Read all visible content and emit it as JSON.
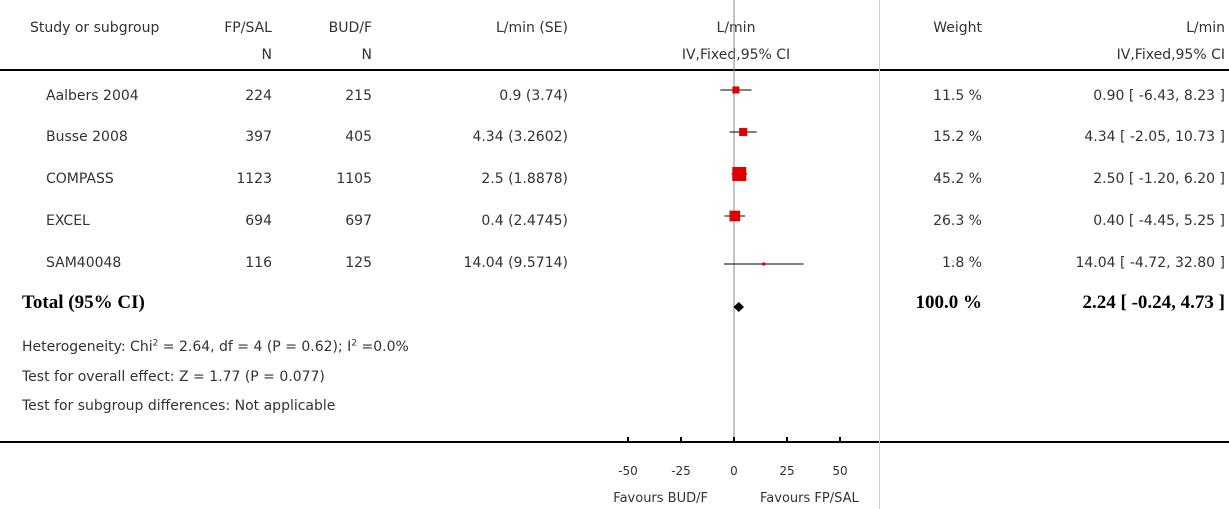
{
  "headers": {
    "study": "Study or subgroup",
    "group1": "FP/SAL",
    "group2": "BUD/F",
    "n1": "N",
    "n2": "N",
    "mean_se": "L/min (SE)",
    "plot_title": "L/min",
    "plot_method": "IV,Fixed,95% CI",
    "weight": "Weight",
    "ci_title": "L/min",
    "ci_method": "IV,Fixed,95% CI"
  },
  "studies": [
    {
      "name": "Aalbers 2004",
      "n1": "224",
      "n2": "215",
      "mean_se": "0.9 (3.74)",
      "weight": "11.5 %",
      "ci": "0.90 [ -6.43, 8.23 ]"
    },
    {
      "name": "Busse 2008",
      "n1": "397",
      "n2": "405",
      "mean_se": "4.34 (3.2602)",
      "weight": "15.2 %",
      "ci": "4.34 [ -2.05, 10.73 ]"
    },
    {
      "name": "COMPASS",
      "n1": "1123",
      "n2": "1105",
      "mean_se": "2.5 (1.8878)",
      "weight": "45.2 %",
      "ci": "2.50 [ -1.20, 6.20 ]"
    },
    {
      "name": "EXCEL",
      "n1": "694",
      "n2": "697",
      "mean_se": "0.4 (2.4745)",
      "weight": "26.3 %",
      "ci": "0.40 [ -4.45, 5.25 ]"
    },
    {
      "name": "SAM40048",
      "n1": "116",
      "n2": "125",
      "mean_se": "14.04 (9.5714)",
      "weight": "1.8 %",
      "ci": "14.04 [ -4.72, 32.80 ]"
    }
  ],
  "total": {
    "label": "Total (95% CI)",
    "weight": "100.0 %",
    "ci": "2.24 [ -0.24, 4.73 ]"
  },
  "footer": {
    "het_prefix": "Heterogeneity: Chi",
    "het_sup1": "2",
    "het_mid": " = 2.64, df = 4 (P = 0.62); I",
    "het_sup2": "2",
    "het_suffix": " =0.0%",
    "overall": "Test for overall effect: Z = 1.77 (P = 0.077)",
    "subgroup": "Test for subgroup differences: Not applicable"
  },
  "axis": {
    "favours_left": "Favours BUD/F",
    "favours_right": "Favours FP/SAL"
  },
  "chart_data": {
    "type": "forest",
    "xlim": [
      -50,
      50
    ],
    "ticks": [
      -50,
      -25,
      0,
      25,
      50
    ],
    "tick_labels": [
      "-50",
      "-25",
      "0",
      "25",
      "50"
    ],
    "marker_color": "#e00000",
    "diamond_color": "#000000",
    "points": [
      {
        "study": "Aalbers 2004",
        "est": 0.9,
        "lo": -6.43,
        "hi": 8.23,
        "weight": 11.5
      },
      {
        "study": "Busse 2008",
        "est": 4.34,
        "lo": -2.05,
        "hi": 10.73,
        "weight": 15.2
      },
      {
        "study": "COMPASS",
        "est": 2.5,
        "lo": -1.2,
        "hi": 6.2,
        "weight": 45.2
      },
      {
        "study": "EXCEL",
        "est": 0.4,
        "lo": -4.45,
        "hi": 5.25,
        "weight": 26.3
      },
      {
        "study": "SAM40048",
        "est": 14.04,
        "lo": -4.72,
        "hi": 32.8,
        "weight": 1.8
      }
    ],
    "total": {
      "est": 2.24,
      "lo": -0.24,
      "hi": 4.73
    }
  }
}
